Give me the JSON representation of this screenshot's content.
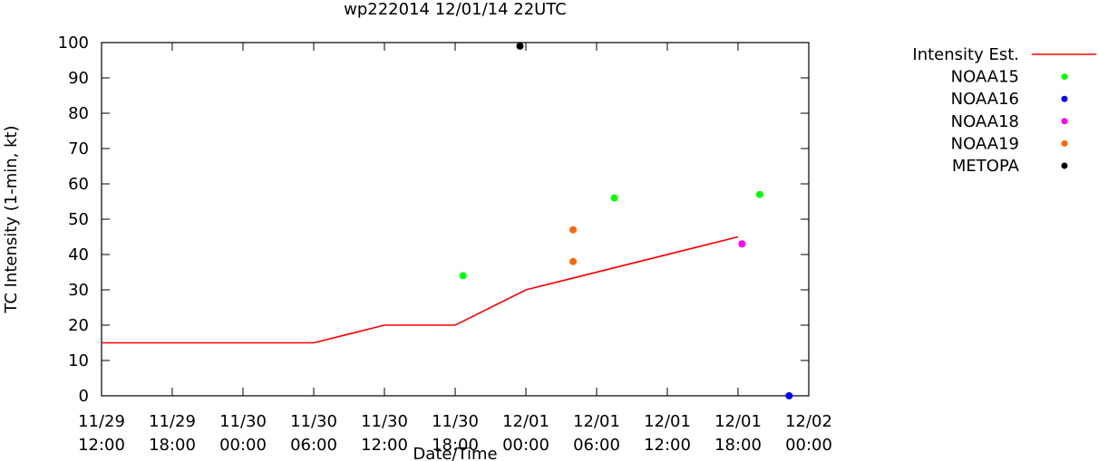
{
  "chart_data": {
    "type": "line",
    "title": "wp222014 12/01/14 22UTC",
    "xlabel": "Date/Time",
    "ylabel": "TC Intensity (1-min, kt)",
    "xlim": [
      "2014-11-29 12:00",
      "2014-12-02 00:00"
    ],
    "ylim": [
      0,
      100
    ],
    "grid": false,
    "legend_position": "outside-right",
    "x_ticks": [
      {
        "date": "11/29",
        "time": "12:00",
        "x": "2014-11-29 12:00"
      },
      {
        "date": "11/29",
        "time": "18:00",
        "x": "2014-11-29 18:00"
      },
      {
        "date": "11/30",
        "time": "00:00",
        "x": "2014-11-30 00:00"
      },
      {
        "date": "11/30",
        "time": "06:00",
        "x": "2014-11-30 06:00"
      },
      {
        "date": "11/30",
        "time": "12:00",
        "x": "2014-11-30 12:00"
      },
      {
        "date": "11/30",
        "time": "18:00",
        "x": "2014-11-30 18:00"
      },
      {
        "date": "12/01",
        "time": "00:00",
        "x": "2014-12-01 00:00"
      },
      {
        "date": "12/01",
        "time": "06:00",
        "x": "2014-12-01 06:00"
      },
      {
        "date": "12/01",
        "time": "12:00",
        "x": "2014-12-01 12:00"
      },
      {
        "date": "12/01",
        "time": "18:00",
        "x": "2014-12-01 18:00"
      },
      {
        "date": "12/02",
        "time": "00:00",
        "x": "2014-12-02 00:00"
      }
    ],
    "y_ticks": [
      "0",
      "10",
      "20",
      "30",
      "40",
      "50",
      "60",
      "70",
      "80",
      "90",
      "100"
    ],
    "series": [
      {
        "name": "Intensity Est.",
        "kind": "line",
        "color": "#ff0000",
        "points": [
          {
            "x": "2014-11-29 12:00",
            "y": 15
          },
          {
            "x": "2014-11-30 06:00",
            "y": 15
          },
          {
            "x": "2014-11-30 12:00",
            "y": 20
          },
          {
            "x": "2014-11-30 18:00",
            "y": 20
          },
          {
            "x": "2014-12-01 00:00",
            "y": 30
          },
          {
            "x": "2014-12-01 18:00",
            "y": 45
          }
        ]
      },
      {
        "name": "NOAA15",
        "kind": "scatter",
        "color": "#00ff00",
        "points": [
          {
            "x": "2014-11-30 18:40",
            "y": 34
          },
          {
            "x": "2014-12-01 07:30",
            "y": 56
          },
          {
            "x": "2014-12-01 19:50",
            "y": 57
          }
        ]
      },
      {
        "name": "NOAA16",
        "kind": "scatter",
        "color": "#0000ff",
        "points": [
          {
            "x": "2014-12-01 22:20",
            "y": 0
          }
        ]
      },
      {
        "name": "NOAA18",
        "kind": "scatter",
        "color": "#ff00ff",
        "points": [
          {
            "x": "2014-12-01 18:20",
            "y": 43
          }
        ]
      },
      {
        "name": "NOAA19",
        "kind": "scatter",
        "color": "#ff6600",
        "points": [
          {
            "x": "2014-12-01 04:00",
            "y": 47
          },
          {
            "x": "2014-12-01 04:00",
            "y": 38
          }
        ]
      },
      {
        "name": "METOPA",
        "kind": "scatter",
        "color": "#000000",
        "points": [
          {
            "x": "2014-11-30 23:30",
            "y": 99
          }
        ]
      }
    ]
  }
}
